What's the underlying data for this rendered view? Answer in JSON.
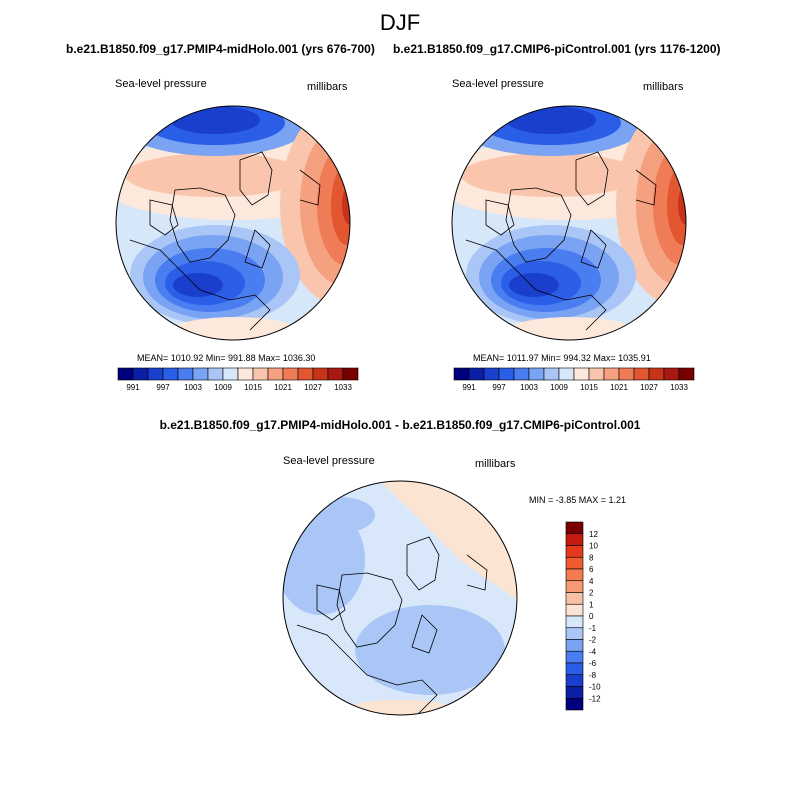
{
  "page": {
    "title": "DJF",
    "diff_title": "b.e21.B1850.f09_g17.PMIP4-midHolo.001 - b.e21.B1850.f09_g17.CMIP6-piControl.001"
  },
  "panels": [
    {
      "title": "b.e21.B1850.f09_g17.PMIP4-midHolo.001 (yrs 676-700)",
      "variable": "Sea-level pressure",
      "units": "millibars",
      "stats": "MEAN= 1010.92  Min= 991.88  Max= 1036.30"
    },
    {
      "title": "b.e21.B1850.f09_g17.CMIP6-piControl.001 (yrs 1176-1200)",
      "variable": "Sea-level pressure",
      "units": "millibars",
      "stats": "MEAN= 1011.97  Min= 994.32  Max= 1035.91"
    },
    {
      "variable": "Sea-level pressure",
      "units": "millibars",
      "stats": "MIN =  -3.85 MAX =   1.21"
    }
  ],
  "colorbar_main": {
    "colors": [
      "#00007f",
      "#0a1fa6",
      "#1a3fcc",
      "#2a5ee6",
      "#4a7ef0",
      "#7aa3f3",
      "#a9c6f6",
      "#d6e7f9",
      "#fde8dc",
      "#f9c6ad",
      "#f5a07f",
      "#f07c57",
      "#e25630",
      "#c8331a",
      "#a51910",
      "#7a0000"
    ],
    "tick_labels": [
      "991",
      "997",
      "1003",
      "1009",
      "1015",
      "1021",
      "1027",
      "1033"
    ]
  },
  "colorbar_diff": {
    "colors": [
      "#7a0000",
      "#c41a10",
      "#e23a1a",
      "#f05a30",
      "#f47a50",
      "#f59a74",
      "#f8c0a4",
      "#fce4d2",
      "#d8e8fa",
      "#a9c6f6",
      "#7aa3f3",
      "#4a7ef0",
      "#2a5ee6",
      "#1a3fcc",
      "#0a1fa6",
      "#00007f"
    ],
    "tick_labels": [
      "12",
      "10",
      "8",
      "6",
      "4",
      "2",
      "1",
      "0",
      "-1",
      "-2",
      "-4",
      "-6",
      "-8",
      "-10",
      "-12"
    ]
  }
}
